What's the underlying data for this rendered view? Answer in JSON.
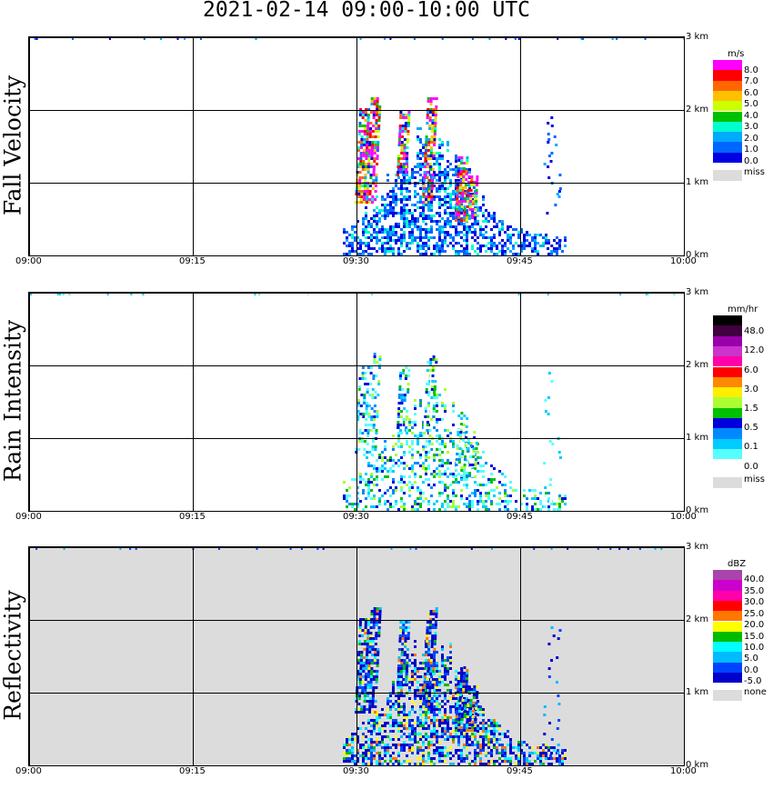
{
  "title": "2021-02-14   09:00-10:00 UTC",
  "chart_data": [
    {
      "type": "heatmap",
      "ylabel": "Fall Velocity",
      "x_ticks": [
        "09:00",
        "09:15",
        "09:30",
        "09:45",
        "10:00"
      ],
      "height_ticks": [
        "0 km",
        "1 km",
        "2 km",
        "3 km"
      ],
      "xlim": [
        "09:00",
        "10:00"
      ],
      "ylim_km": [
        0,
        3
      ],
      "grid": true,
      "legend": {
        "unit": "m/s",
        "levels": [
          "8.0",
          "7.0",
          "6.0",
          "5.0",
          "4.0",
          "3.0",
          "2.0",
          "1.0",
          "0.0"
        ],
        "colors": [
          "#ff00ff",
          "#ff0000",
          "#ff6600",
          "#ffc000",
          "#ccff00",
          "#00c000",
          "#00ffcc",
          "#00aaff",
          "#0066ff",
          "#0000e0"
        ],
        "miss_label": "miss",
        "miss_color": "#dcdcdc"
      }
    },
    {
      "type": "heatmap",
      "ylabel": "Rain Intensity",
      "x_ticks": [
        "09:00",
        "09:15",
        "09:30",
        "09:45",
        "10:00"
      ],
      "height_ticks": [
        "0 km",
        "1 km",
        "2 km",
        "3 km"
      ],
      "xlim": [
        "09:00",
        "10:00"
      ],
      "ylim_km": [
        0,
        3
      ],
      "grid": true,
      "legend": {
        "unit": "mm/hr",
        "levels": [
          "48.0",
          "12.0",
          "6.0",
          "3.0",
          "1.5",
          "0.5",
          "0.1",
          "0.0"
        ],
        "colors": [
          "#000000",
          "#400040",
          "#9900aa",
          "#cc33cc",
          "#ff00aa",
          "#ff0000",
          "#ff8800",
          "#ffee00",
          "#aaff33",
          "#00c000",
          "#0000dd",
          "#0088ff",
          "#00ccff",
          "#55ffff",
          "#ffffff"
        ],
        "miss_label": "miss",
        "miss_color": "#dcdcdc"
      }
    },
    {
      "type": "heatmap",
      "ylabel": "Reflectivity",
      "x_ticks": [
        "09:00",
        "09:15",
        "09:30",
        "09:45",
        "10:00"
      ],
      "height_ticks": [
        "0 km",
        "1 km",
        "2 km",
        "3 km"
      ],
      "xlim": [
        "09:00",
        "10:00"
      ],
      "ylim_km": [
        0,
        3
      ],
      "grid": true,
      "legend": {
        "unit": "dBZ",
        "levels": [
          "40.0",
          "35.0",
          "30.0",
          "25.0",
          "20.0",
          "15.0",
          "10.0",
          "5.0",
          "0.0",
          "-5.0"
        ],
        "colors": [
          "#aa44aa",
          "#cc00cc",
          "#ff00aa",
          "#ff0000",
          "#ff7700",
          "#ffff00",
          "#00bb00",
          "#00ffff",
          "#00bbff",
          "#0044ff",
          "#0000cc"
        ],
        "miss_label": "none",
        "miss_color": "#dcdcdc"
      }
    }
  ]
}
